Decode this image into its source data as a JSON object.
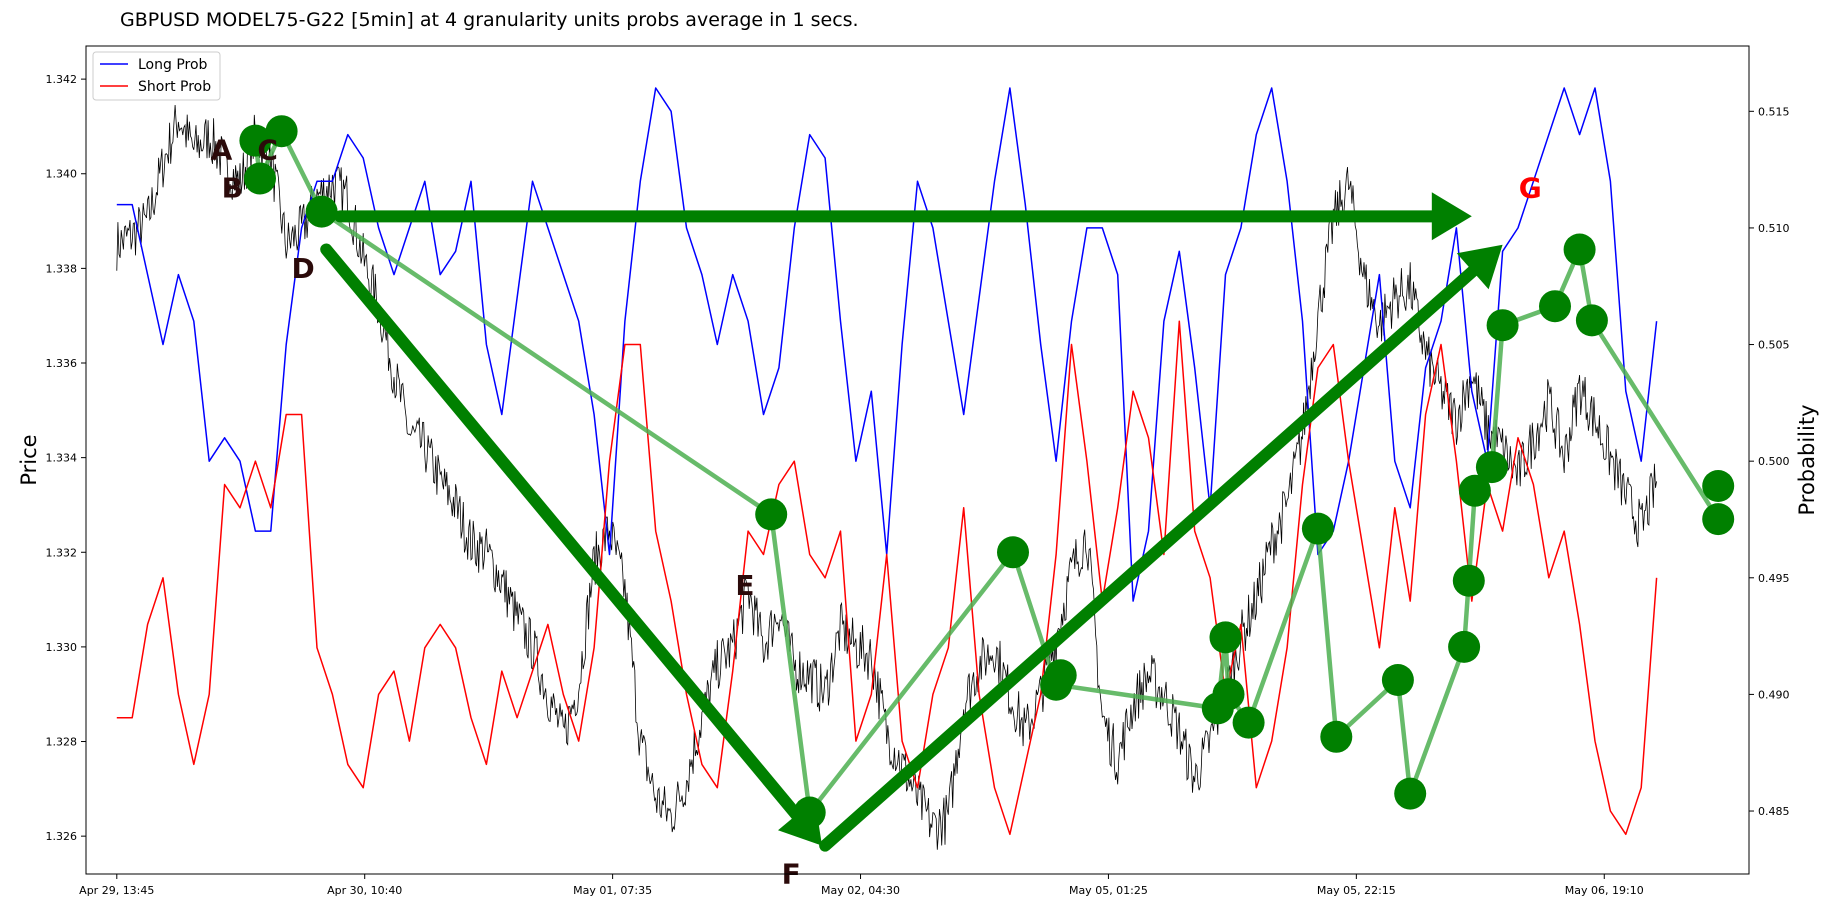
{
  "chart_data": {
    "type": "line",
    "title": "GBPUSD MODEL75-G22 [5min] at 4 granularity units probs average in 1 secs.",
    "xlabel": "",
    "ylabel_left": "Price",
    "ylabel_right": "Probability",
    "x_ticks": [
      "Apr 29, 13:45",
      "Apr 30, 10:40",
      "May 01, 07:35",
      "May 02, 04:30",
      "May 05, 01:25",
      "May 05, 22:15",
      "May 06, 19:10"
    ],
    "ylim_left": [
      1.3252,
      1.3427
    ],
    "yticks_left": [
      "1.326",
      "1.328",
      "1.330",
      "1.332",
      "1.334",
      "1.336",
      "1.338",
      "1.340",
      "1.342"
    ],
    "ylim_right": [
      0.4823,
      0.5178
    ],
    "yticks_right": [
      "0.485",
      "0.490",
      "0.495",
      "0.500",
      "0.505",
      "0.510",
      "0.515"
    ],
    "x_range": [
      -2,
      106
    ],
    "legend": {
      "placement": "upper-left",
      "entries": [
        "Long Prob",
        "Short Prob"
      ]
    },
    "colors": {
      "long": "#0000ff",
      "short": "#ff0000",
      "price": "#000000",
      "markers": "#008000",
      "path": "#4caf50",
      "label_dark": "#2b0a0a",
      "label_g": "#ff0000"
    },
    "series": [
      {
        "name": "Long Prob",
        "axis": "right",
        "x": [
          0,
          1,
          2,
          3,
          4,
          5,
          6,
          7,
          8,
          9,
          10,
          11,
          12,
          13,
          14,
          15,
          16,
          17,
          18,
          19,
          20,
          21,
          22,
          23,
          24,
          25,
          26,
          27,
          28,
          29,
          30,
          31,
          32,
          33,
          34,
          35,
          36,
          37,
          38,
          39,
          40,
          41,
          42,
          43,
          44,
          45,
          46,
          47,
          48,
          49,
          50,
          51,
          52,
          53,
          54,
          55,
          56,
          57,
          58,
          59,
          60,
          61,
          62,
          63,
          64,
          65,
          66,
          67,
          68,
          69,
          70,
          71,
          72,
          73,
          74,
          75,
          76,
          77,
          78,
          79,
          80,
          81,
          82,
          83,
          84,
          85,
          86,
          87,
          88,
          89,
          90,
          91,
          92,
          93,
          94,
          95,
          96,
          97,
          98,
          99,
          100
        ],
        "values": [
          0.511,
          0.511,
          0.508,
          0.505,
          0.508,
          0.506,
          0.5,
          0.501,
          0.5,
          0.497,
          0.497,
          0.505,
          0.51,
          0.512,
          0.512,
          0.514,
          0.513,
          0.51,
          0.508,
          0.51,
          0.512,
          0.508,
          0.509,
          0.512,
          0.505,
          0.502,
          0.507,
          0.512,
          0.51,
          0.508,
          0.506,
          0.502,
          0.496,
          0.506,
          0.512,
          0.516,
          0.515,
          0.51,
          0.508,
          0.505,
          0.508,
          0.506,
          0.502,
          0.504,
          0.51,
          0.514,
          0.513,
          0.506,
          0.5,
          0.503,
          0.496,
          0.505,
          0.512,
          0.51,
          0.506,
          0.502,
          0.507,
          0.512,
          0.516,
          0.511,
          0.505,
          0.5,
          0.506,
          0.51,
          0.51,
          0.508,
          0.494,
          0.497,
          0.506,
          0.509,
          0.504,
          0.498,
          0.508,
          0.51,
          0.514,
          0.516,
          0.512,
          0.506,
          0.496,
          0.497,
          0.5,
          0.504,
          0.508,
          0.5,
          0.498,
          0.504,
          0.506,
          0.51,
          0.503,
          0.5,
          0.509,
          0.51,
          0.512,
          0.514,
          0.516,
          0.514,
          0.516,
          0.512,
          0.503,
          0.5,
          0.506
        ],
        "color": "#0000ff"
      },
      {
        "name": "Short Prob",
        "axis": "right",
        "x": [
          0,
          1,
          2,
          3,
          4,
          5,
          6,
          7,
          8,
          9,
          10,
          11,
          12,
          13,
          14,
          15,
          16,
          17,
          18,
          19,
          20,
          21,
          22,
          23,
          24,
          25,
          26,
          27,
          28,
          29,
          30,
          31,
          32,
          33,
          34,
          35,
          36,
          37,
          38,
          39,
          40,
          41,
          42,
          43,
          44,
          45,
          46,
          47,
          48,
          49,
          50,
          51,
          52,
          53,
          54,
          55,
          56,
          57,
          58,
          59,
          60,
          61,
          62,
          63,
          64,
          65,
          66,
          67,
          68,
          69,
          70,
          71,
          72,
          73,
          74,
          75,
          76,
          77,
          78,
          79,
          80,
          81,
          82,
          83,
          84,
          85,
          86,
          87,
          88,
          89,
          90,
          91,
          92,
          93,
          94,
          95,
          96,
          97,
          98,
          99,
          100
        ],
        "values": [
          0.489,
          0.489,
          0.493,
          0.495,
          0.49,
          0.487,
          0.49,
          0.499,
          0.498,
          0.5,
          0.498,
          0.502,
          0.502,
          0.492,
          0.49,
          0.487,
          0.486,
          0.49,
          0.491,
          0.488,
          0.492,
          0.493,
          0.492,
          0.489,
          0.487,
          0.491,
          0.489,
          0.491,
          0.493,
          0.49,
          0.488,
          0.492,
          0.5,
          0.505,
          0.505,
          0.497,
          0.494,
          0.49,
          0.487,
          0.486,
          0.491,
          0.497,
          0.496,
          0.499,
          0.5,
          0.496,
          0.495,
          0.497,
          0.488,
          0.49,
          0.496,
          0.488,
          0.486,
          0.49,
          0.492,
          0.498,
          0.49,
          0.486,
          0.484,
          0.487,
          0.49,
          0.496,
          0.505,
          0.5,
          0.494,
          0.498,
          0.503,
          0.501,
          0.496,
          0.506,
          0.497,
          0.495,
          0.49,
          0.493,
          0.486,
          0.488,
          0.492,
          0.499,
          0.504,
          0.505,
          0.5,
          0.496,
          0.492,
          0.498,
          0.494,
          0.502,
          0.505,
          0.5,
          0.494,
          0.499,
          0.497,
          0.501,
          0.499,
          0.495,
          0.497,
          0.493,
          0.488,
          0.485,
          0.484,
          0.486,
          0.495
        ],
        "color": "#ff0000"
      },
      {
        "name": "Price",
        "axis": "left",
        "x": [
          0,
          1,
          2,
          3,
          4,
          5,
          6,
          7,
          8,
          9,
          10,
          11,
          12,
          13,
          14,
          15,
          16,
          17,
          18,
          19,
          20,
          21,
          22,
          23,
          24,
          25,
          26,
          27,
          28,
          29,
          30,
          31,
          32,
          33,
          34,
          35,
          36,
          37,
          38,
          39,
          40,
          41,
          42,
          43,
          44,
          45,
          46,
          47,
          48,
          49,
          50,
          51,
          52,
          53,
          54,
          55,
          56,
          57,
          58,
          59,
          60,
          61,
          62,
          63,
          64,
          65,
          66,
          67,
          68,
          69,
          70,
          71,
          72,
          73,
          74,
          75,
          76,
          77,
          78,
          79,
          80,
          81,
          82,
          83,
          84,
          85,
          86,
          87,
          88,
          89,
          90,
          91,
          92,
          93,
          94,
          95,
          96,
          97,
          98,
          99,
          100
        ],
        "values": [
          1.3385,
          1.3387,
          1.339,
          1.3402,
          1.3412,
          1.3405,
          1.3408,
          1.3402,
          1.3398,
          1.3408,
          1.3403,
          1.3385,
          1.3388,
          1.3395,
          1.3398,
          1.3395,
          1.3382,
          1.3372,
          1.3358,
          1.3345,
          1.3342,
          1.3335,
          1.333,
          1.3322,
          1.332,
          1.3314,
          1.3306,
          1.33,
          1.329,
          1.3281,
          1.3292,
          1.3318,
          1.3325,
          1.3312,
          1.328,
          1.3268,
          1.3264,
          1.3272,
          1.3285,
          1.3296,
          1.33,
          1.3312,
          1.33,
          1.3308,
          1.3296,
          1.3294,
          1.329,
          1.3304,
          1.33,
          1.3298,
          1.3282,
          1.3275,
          1.3268,
          1.3262,
          1.3264,
          1.3288,
          1.3296,
          1.33,
          1.329,
          1.3282,
          1.329,
          1.3302,
          1.3316,
          1.3324,
          1.3285,
          1.3276,
          1.3288,
          1.3294,
          1.329,
          1.3282,
          1.3272,
          1.328,
          1.329,
          1.3302,
          1.331,
          1.3322,
          1.333,
          1.3345,
          1.337,
          1.339,
          1.3398,
          1.3378,
          1.3368,
          1.3374,
          1.3376,
          1.3362,
          1.3354,
          1.3348,
          1.3358,
          1.3346,
          1.3342,
          1.3336,
          1.3344,
          1.3352,
          1.334,
          1.3355,
          1.3348,
          1.334,
          1.3332,
          1.3325,
          1.3335
        ],
        "color": "#000000"
      }
    ],
    "markers": [
      {
        "x": 9.0,
        "price": 1.3407
      },
      {
        "x": 9.3,
        "price": 1.3399
      },
      {
        "x": 10.7,
        "price": 1.3409
      },
      {
        "x": 13.3,
        "price": 1.3392
      },
      {
        "x": 42.5,
        "price": 1.3328
      },
      {
        "x": 45.0,
        "price": 1.3265
      },
      {
        "x": 58.2,
        "price": 1.332
      },
      {
        "x": 61.0,
        "price": 1.3292
      },
      {
        "x": 61.3,
        "price": 1.3294
      },
      {
        "x": 71.5,
        "price": 1.3287
      },
      {
        "x": 72.0,
        "price": 1.3302
      },
      {
        "x": 72.2,
        "price": 1.329
      },
      {
        "x": 73.5,
        "price": 1.3284
      },
      {
        "x": 78.0,
        "price": 1.3325
      },
      {
        "x": 79.2,
        "price": 1.3281
      },
      {
        "x": 83.2,
        "price": 1.3293
      },
      {
        "x": 84.0,
        "price": 1.3269
      },
      {
        "x": 87.5,
        "price": 1.33
      },
      {
        "x": 87.8,
        "price": 1.3314
      },
      {
        "x": 88.2,
        "price": 1.3333
      },
      {
        "x": 89.3,
        "price": 1.3338
      },
      {
        "x": 90.0,
        "price": 1.3368
      },
      {
        "x": 93.4,
        "price": 1.3372
      },
      {
        "x": 95.0,
        "price": 1.3384
      },
      {
        "x": 95.8,
        "price": 1.3369
      },
      {
        "x": 104.0,
        "price": 1.3334
      },
      {
        "x": 104.0,
        "price": 1.3327
      }
    ],
    "thin_path": [
      [
        9.0,
        1.3407
      ],
      [
        9.3,
        1.3399
      ],
      [
        10.7,
        1.3409
      ],
      [
        13.3,
        1.3392
      ],
      [
        42.5,
        1.3328
      ],
      [
        45.0,
        1.3265
      ],
      [
        58.2,
        1.332
      ],
      [
        61.0,
        1.3292
      ],
      [
        71.5,
        1.3287
      ],
      [
        72.0,
        1.3302
      ],
      [
        72.2,
        1.329
      ],
      [
        73.5,
        1.3284
      ],
      [
        78.0,
        1.3325
      ],
      [
        79.2,
        1.3281
      ],
      [
        83.2,
        1.3293
      ],
      [
        84.0,
        1.3269
      ],
      [
        87.5,
        1.33
      ],
      [
        87.8,
        1.3314
      ],
      [
        88.2,
        1.3333
      ],
      [
        89.3,
        1.3338
      ],
      [
        90.0,
        1.3368
      ],
      [
        93.4,
        1.3372
      ],
      [
        95.0,
        1.3384
      ],
      [
        95.8,
        1.3369
      ],
      [
        104.0,
        1.3327
      ]
    ],
    "arrows": [
      {
        "from": [
          14.5,
          1.3391
        ],
        "to": [
          88.0,
          1.3391
        ]
      },
      {
        "from": [
          13.6,
          1.3384
        ],
        "to": [
          45.8,
          1.3258
        ]
      },
      {
        "from": [
          46.0,
          1.3258
        ],
        "to": [
          90.0,
          1.3385
        ]
      }
    ],
    "annotations": [
      {
        "text": "A",
        "x": 6.8,
        "price": 1.3403
      },
      {
        "text": "B",
        "x": 7.5,
        "price": 1.3395
      },
      {
        "text": "C",
        "x": 9.8,
        "price": 1.3403
      },
      {
        "text": "D",
        "x": 12.1,
        "price": 1.3378
      },
      {
        "text": "E",
        "x": 40.8,
        "price": 1.3311
      },
      {
        "text": "F",
        "x": 43.8,
        "price": 1.325
      },
      {
        "text": "G",
        "x": 91.8,
        "price": 1.3395
      }
    ],
    "grid": false
  }
}
